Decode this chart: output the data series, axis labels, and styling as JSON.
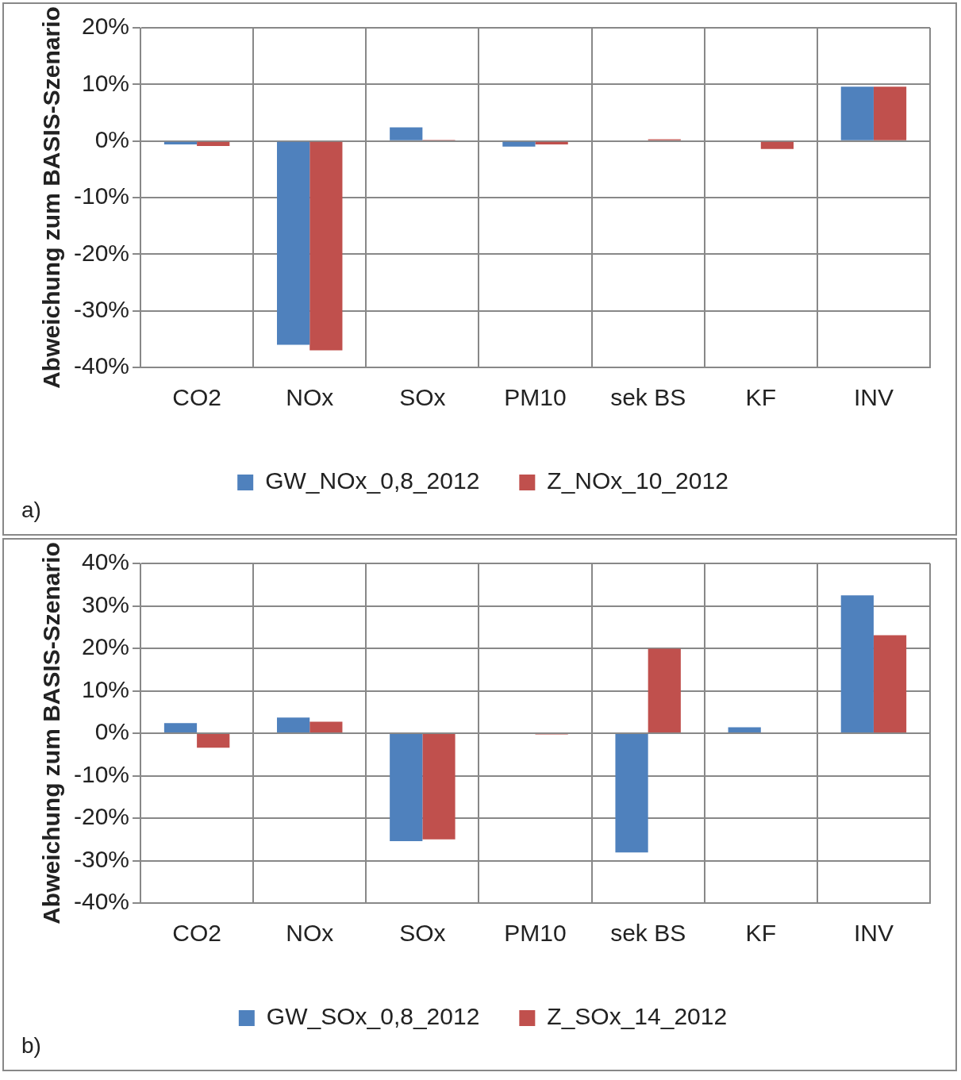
{
  "chart_data": [
    {
      "type": "bar",
      "ylabel": "Abweichung zum BASIS-Szenario",
      "categories": [
        "CO2",
        "NOx",
        "SOx",
        "PM10",
        "sek BS",
        "KF",
        "INV"
      ],
      "series": [
        {
          "name": "GW_NOx_0,8_2012",
          "color": "#4f81bd",
          "values": [
            -0.6,
            -36,
            2.4,
            -1.0,
            0,
            0,
            9.6
          ]
        },
        {
          "name": "Z_NOx_10_2012",
          "color": "#c0504d",
          "values": [
            -0.9,
            -37,
            0.2,
            -0.6,
            0.3,
            -1.4,
            9.6
          ]
        }
      ],
      "ylim": [
        -40,
        20
      ],
      "yticks": [
        {
          "value": -40,
          "label": "-40%"
        },
        {
          "value": -30,
          "label": "-30%"
        },
        {
          "value": -20,
          "label": "-20%"
        },
        {
          "value": -10,
          "label": "-10%"
        },
        {
          "value": 0,
          "label": "0%"
        },
        {
          "value": 10,
          "label": "10%"
        },
        {
          "value": 20,
          "label": "20%"
        }
      ],
      "grid": true,
      "legend": "bottom",
      "annotations": [
        "a)"
      ]
    },
    {
      "type": "bar",
      "ylabel": "Abweichung zum BASIS-Szenario",
      "categories": [
        "CO2",
        "NOx",
        "SOx",
        "PM10",
        "sek BS",
        "KF",
        "INV"
      ],
      "series": [
        {
          "name": "GW_SOx_0,8_2012",
          "color": "#4f81bd",
          "values": [
            2.4,
            3.7,
            -25.4,
            0,
            -28.1,
            1.4,
            32.5
          ]
        },
        {
          "name": "Z_SOx_14_2012",
          "color": "#c0504d",
          "values": [
            -3.4,
            2.7,
            -25.0,
            -0.3,
            19.9,
            0,
            23.1
          ]
        }
      ],
      "ylim": [
        -40,
        40
      ],
      "yticks": [
        {
          "value": -40,
          "label": "-40%"
        },
        {
          "value": -30,
          "label": "-30%"
        },
        {
          "value": -20,
          "label": "-20%"
        },
        {
          "value": -10,
          "label": "-10%"
        },
        {
          "value": 0,
          "label": "0%"
        },
        {
          "value": 10,
          "label": "10%"
        },
        {
          "value": 20,
          "label": "20%"
        },
        {
          "value": 30,
          "label": "30%"
        },
        {
          "value": 40,
          "label": "40%"
        }
      ],
      "grid": true,
      "legend": "bottom",
      "annotations": [
        "b)"
      ]
    }
  ]
}
